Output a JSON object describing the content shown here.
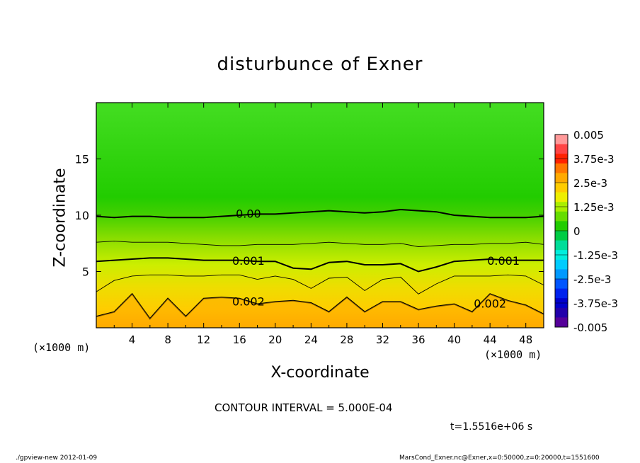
{
  "title": "disturbunce of Exner",
  "chart_data": {
    "type": "heatmap",
    "title": "disturbunce of Exner",
    "xlabel": "X-coordinate",
    "ylabel": "Z-coordinate",
    "x_unit": "(×1000 m)",
    "z_unit": "(×1000 m)",
    "xlim": [
      0,
      50
    ],
    "ylim": [
      0,
      20
    ],
    "x_ticks": [
      4,
      8,
      12,
      16,
      20,
      24,
      28,
      32,
      36,
      40,
      44,
      48
    ],
    "y_ticks": [
      5,
      10,
      15
    ],
    "colorbar": {
      "labels": [
        "0.005",
        "3.75e-3",
        "2.5e-3",
        "1.25e-3",
        "0",
        "-1.25e-3",
        "-2.5e-3",
        "-3.75e-3",
        "-0.005"
      ],
      "colors": [
        "#ff9999",
        "#ff4444",
        "#ff2200",
        "#ff7700",
        "#ffaa00",
        "#ffcc00",
        "#eeee00",
        "#aaee00",
        "#66dd00",
        "#22cc00",
        "#00cc44",
        "#00dd99",
        "#00eedd",
        "#00ccff",
        "#0099ff",
        "#0055ff",
        "#0022ee",
        "#0000cc",
        "#2200aa",
        "#550099"
      ]
    },
    "contour_labels": [
      "0.00",
      "0.001",
      "0.001",
      "0.002",
      "0.002"
    ],
    "contours": [
      {
        "level": 0.0,
        "z": [
          9.9,
          9.8,
          9.9,
          9.9,
          9.8,
          9.8,
          9.8,
          9.9,
          10.0,
          10.1,
          10.1,
          10.2,
          10.3,
          10.4,
          10.3,
          10.2,
          10.3,
          10.5,
          10.4,
          10.3,
          10.0,
          9.9,
          9.8,
          9.8,
          9.8,
          9.9
        ]
      },
      {
        "level": 0.0005,
        "z": [
          7.6,
          7.7,
          7.6,
          7.6,
          7.6,
          7.5,
          7.4,
          7.3,
          7.3,
          7.4,
          7.4,
          7.4,
          7.5,
          7.6,
          7.5,
          7.4,
          7.4,
          7.5,
          7.2,
          7.3,
          7.4,
          7.4,
          7.5,
          7.5,
          7.6,
          7.4
        ]
      },
      {
        "level": 0.001,
        "z": [
          5.9,
          6.0,
          6.1,
          6.2,
          6.2,
          6.1,
          6.0,
          6.0,
          6.0,
          5.9,
          5.9,
          5.3,
          5.2,
          5.8,
          5.9,
          5.6,
          5.6,
          5.7,
          5.0,
          5.4,
          5.9,
          6.0,
          6.1,
          6.0,
          6.0,
          6.0
        ]
      },
      {
        "level": 0.0015,
        "z": [
          3.2,
          4.2,
          4.6,
          4.7,
          4.7,
          4.6,
          4.6,
          4.7,
          4.7,
          4.3,
          4.6,
          4.3,
          3.5,
          4.4,
          4.5,
          3.3,
          4.3,
          4.5,
          3.0,
          3.9,
          4.6,
          4.6,
          4.6,
          4.7,
          4.6,
          3.8
        ]
      },
      {
        "level": 0.002,
        "z": [
          1.0,
          1.4,
          3.0,
          0.8,
          2.6,
          1.0,
          2.6,
          2.7,
          2.6,
          2.1,
          2.3,
          2.4,
          2.2,
          1.4,
          2.7,
          1.4,
          2.3,
          2.3,
          1.6,
          1.9,
          2.1,
          1.4,
          3.0,
          2.4,
          2.0,
          1.2
        ]
      }
    ]
  },
  "contour_interval": "CONTOUR INTERVAL = 5.000E-04",
  "time": "t=1.5516e+06 s",
  "footer_left": "./gpview-new   2012-01-09",
  "footer_right": "MarsCond_Exner.nc@Exner,x=0:50000,z=0:20000,t=1551600"
}
